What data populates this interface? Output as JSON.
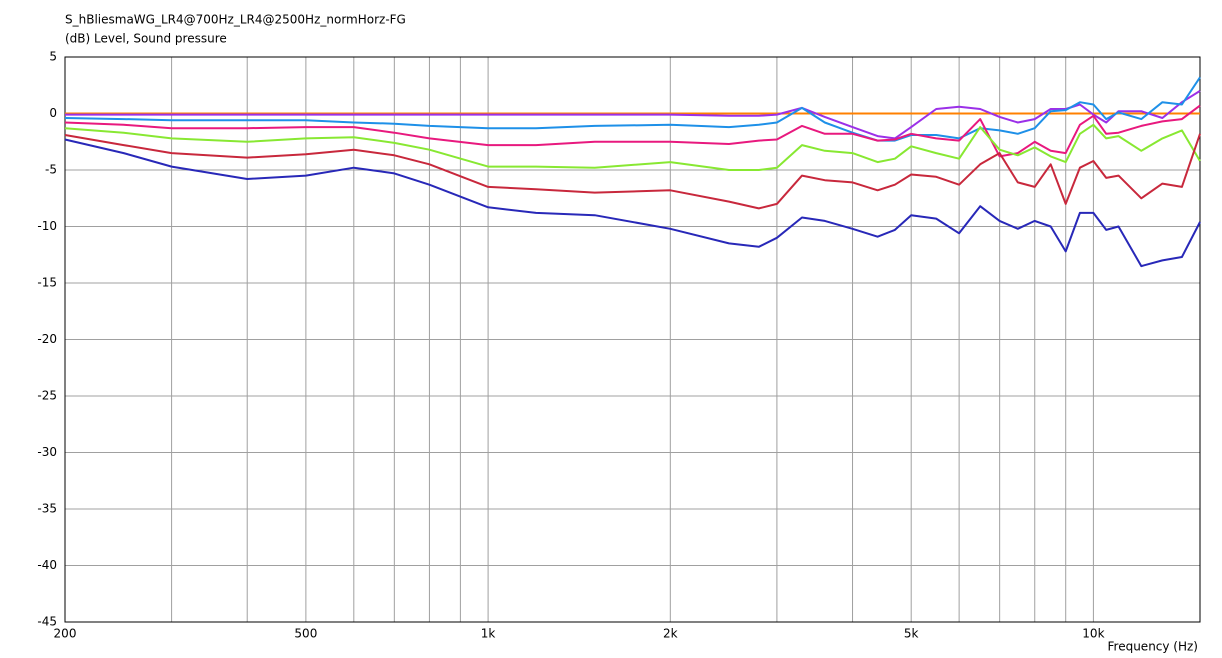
{
  "chart_data": {
    "type": "line",
    "title": "S_hBliesmaWG_LR4@700Hz_LR4@2500Hz_normHorz-FG",
    "ylabel": "(dB)  Level, Sound pressure",
    "xlabel": "Frequency  (Hz)",
    "xscale": "log",
    "grid": true,
    "xlim": [
      200,
      15000
    ],
    "ylim": [
      -45,
      5
    ],
    "xticks": [
      200,
      500,
      {
        "value": 1000,
        "label": "1k"
      },
      {
        "value": 2000,
        "label": "2k"
      },
      {
        "value": 5000,
        "label": "5k"
      },
      {
        "value": 10000,
        "label": "10k"
      }
    ],
    "minor_xticks": [
      300,
      400,
      600,
      700,
      800,
      900,
      3000,
      4000,
      6000,
      7000,
      8000,
      9000
    ],
    "yticks": [
      5,
      0,
      -5,
      -10,
      -15,
      -20,
      -25,
      -30,
      -35,
      -40,
      -45
    ],
    "x": [
      200,
      250,
      300,
      400,
      500,
      600,
      700,
      800,
      1000,
      1200,
      1500,
      2000,
      2500,
      2800,
      3000,
      3300,
      3600,
      4000,
      4400,
      4700,
      5000,
      5500,
      6000,
      6500,
      7000,
      7500,
      8000,
      8500,
      9000,
      9500,
      10000,
      10500,
      11000,
      12000,
      13000,
      14000,
      15000
    ],
    "series": [
      {
        "color": "#ff8000",
        "values": [
          0,
          0,
          0,
          0,
          0,
          0,
          0,
          0,
          0,
          0,
          0,
          0,
          0,
          0,
          0,
          0,
          0,
          0,
          0,
          0,
          0,
          0,
          0,
          0,
          0,
          0,
          0,
          0,
          0,
          0,
          0,
          0,
          0,
          0,
          0,
          0,
          0
        ]
      },
      {
        "color": "#9b30e8",
        "values": [
          -0.1,
          -0.1,
          -0.1,
          -0.1,
          -0.1,
          -0.1,
          -0.1,
          -0.1,
          -0.1,
          -0.1,
          -0.1,
          -0.1,
          -0.2,
          -0.2,
          -0.1,
          0.5,
          -0.3,
          -1.2,
          -2,
          -2.2,
          -1.2,
          0.4,
          0.6,
          0.4,
          -0.3,
          -0.8,
          -0.5,
          0.4,
          0.4,
          0.8,
          -0.1,
          -0.8,
          0.2,
          0.2,
          -0.4,
          1,
          2
        ]
      },
      {
        "color": "#1e90e8",
        "values": [
          -0.4,
          -0.5,
          -0.6,
          -0.6,
          -0.6,
          -0.8,
          -0.9,
          -1.1,
          -1.3,
          -1.3,
          -1.1,
          -1,
          -1.2,
          -1,
          -0.8,
          0.5,
          -0.8,
          -1.7,
          -2.4,
          -2.4,
          -1.9,
          -1.9,
          -2.2,
          -1.3,
          -1.5,
          -1.8,
          -1.3,
          0.2,
          0.3,
          1,
          0.8,
          -0.5,
          0.1,
          -0.5,
          1,
          0.8,
          3.2
        ]
      },
      {
        "color": "#e8197e",
        "values": [
          -0.8,
          -1,
          -1.3,
          -1.3,
          -1.2,
          -1.2,
          -1.7,
          -2.2,
          -2.8,
          -2.8,
          -2.5,
          -2.5,
          -2.7,
          -2.4,
          -2.3,
          -1.1,
          -1.8,
          -1.8,
          -2.4,
          -2.3,
          -1.8,
          -2.2,
          -2.4,
          -0.5,
          -3.8,
          -3.5,
          -2.5,
          -3.3,
          -3.5,
          -1,
          -0.2,
          -1.8,
          -1.7,
          -1.1,
          -0.7,
          -0.5,
          0.7
        ]
      },
      {
        "color": "#88e832",
        "values": [
          -1.3,
          -1.7,
          -2.2,
          -2.5,
          -2.2,
          -2.1,
          -2.6,
          -3.2,
          -4.7,
          -4.7,
          -4.8,
          -4.3,
          -5,
          -5,
          -4.8,
          -2.8,
          -3.3,
          -3.5,
          -4.3,
          -4,
          -2.9,
          -3.5,
          -4,
          -1.2,
          -3.2,
          -3.7,
          -3,
          -3.8,
          -4.3,
          -1.8,
          -1,
          -2.2,
          -2,
          -3.3,
          -2.2,
          -1.5,
          -4.2
        ]
      },
      {
        "color": "#c8283c",
        "values": [
          -1.9,
          -2.8,
          -3.5,
          -3.9,
          -3.6,
          -3.2,
          -3.7,
          -4.5,
          -6.5,
          -6.7,
          -7,
          -6.8,
          -7.8,
          -8.4,
          -8,
          -5.5,
          -5.9,
          -6.1,
          -6.8,
          -6.3,
          -5.4,
          -5.6,
          -6.3,
          -4.5,
          -3.5,
          -6.1,
          -6.5,
          -4.5,
          -8,
          -4.8,
          -4.2,
          -5.7,
          -5.5,
          -7.5,
          -6.2,
          -6.5,
          -1.8
        ]
      },
      {
        "color": "#2828b8",
        "values": [
          -2.3,
          -3.5,
          -4.7,
          -5.8,
          -5.5,
          -4.8,
          -5.3,
          -6.3,
          -8.3,
          -8.8,
          -9,
          -10.2,
          -11.5,
          -11.8,
          -11,
          -9.2,
          -9.5,
          -10.2,
          -10.9,
          -10.3,
          -9,
          -9.3,
          -10.6,
          -8.2,
          -9.5,
          -10.2,
          -9.5,
          -10,
          -12.2,
          -8.8,
          -8.8,
          -10.3,
          -10,
          -13.5,
          -13,
          -12.7,
          -9.6
        ]
      }
    ]
  }
}
